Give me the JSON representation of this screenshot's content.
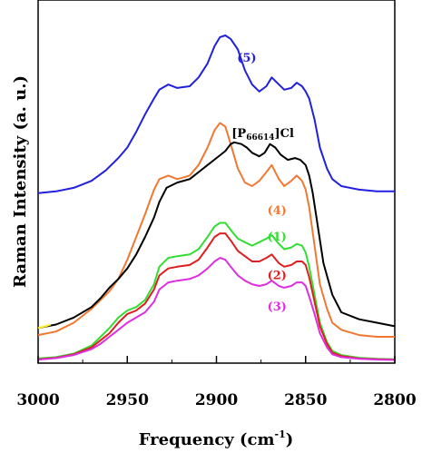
{
  "chart_data": {
    "type": "line",
    "xlabel": "Frequency (cm",
    "xlabel_sup": "-1",
    "xlabel_close": ")",
    "ylabel": "Raman Intensity (a. u.)",
    "xlim": [
      3000,
      2800
    ],
    "ylim": [
      0,
      100
    ],
    "x_ticks": [
      3000,
      2950,
      2900,
      2850,
      2800
    ],
    "x_tick_labels": [
      "3000",
      "2950",
      "2900",
      "2850",
      "2800"
    ],
    "yticks_shown": false,
    "series": [
      {
        "name": "(5)",
        "color": "#2020dd",
        "x": [
          3000,
          2990,
          2980,
          2970,
          2962,
          2955,
          2950,
          2945,
          2940,
          2935,
          2932,
          2927,
          2922,
          2915,
          2910,
          2905,
          2901,
          2898,
          2895,
          2892,
          2888,
          2884,
          2880,
          2876,
          2872,
          2869,
          2865,
          2862,
          2858,
          2855,
          2852,
          2850,
          2848,
          2845,
          2842,
          2838,
          2835,
          2830,
          2820,
          2810,
          2800
        ],
        "y": [
          48,
          48.5,
          49.5,
          51.5,
          54.5,
          58,
          61,
          65.5,
          70.5,
          75,
          77.5,
          79,
          78,
          78.5,
          81,
          85,
          90,
          92.5,
          93,
          92,
          89,
          83,
          79,
          77,
          78.5,
          81,
          79,
          77.5,
          78,
          79.5,
          78.5,
          77,
          75,
          69,
          61,
          55,
          52,
          50,
          49,
          48.5,
          48.5
        ]
      },
      {
        "name": "(4)",
        "color": "#f07830",
        "x": [
          3000,
          2990,
          2980,
          2970,
          2960,
          2955,
          2950,
          2945,
          2940,
          2935,
          2932,
          2927,
          2922,
          2915,
          2910,
          2905,
          2901,
          2898,
          2895,
          2892,
          2888,
          2884,
          2880,
          2876,
          2872,
          2869,
          2865,
          2862,
          2858,
          2855,
          2852,
          2850,
          2848,
          2845,
          2842,
          2838,
          2835,
          2830,
          2820,
          2810,
          2800
        ],
        "y": [
          7.5,
          8.5,
          11,
          15,
          20,
          23.5,
          29,
          35.5,
          42,
          49,
          52,
          53,
          52,
          53,
          56,
          61,
          66,
          68,
          67,
          62,
          55,
          51,
          50,
          51.5,
          54,
          56,
          52,
          50,
          51.5,
          53,
          51.5,
          49,
          44,
          33,
          22,
          15,
          11,
          9,
          7.5,
          7,
          7
        ]
      },
      {
        "name": "[P66614]Cl",
        "color": "#000000",
        "x": [
          3000,
          2990,
          2980,
          2970,
          2965,
          2960,
          2955,
          2950,
          2945,
          2940,
          2935,
          2932,
          2928,
          2922,
          2915,
          2910,
          2905,
          2900,
          2895,
          2892,
          2890,
          2886,
          2883,
          2880,
          2876,
          2873,
          2870,
          2867,
          2864,
          2860,
          2856,
          2853,
          2850,
          2848,
          2846,
          2843,
          2840,
          2835,
          2830,
          2820,
          2810,
          2800
        ],
        "y": [
          9.5,
          10.5,
          12.5,
          15.5,
          18,
          21,
          23.5,
          26.5,
          30.5,
          35.5,
          41,
          45.5,
          49.5,
          51,
          52,
          54,
          56,
          58,
          60,
          62,
          62.5,
          62,
          61,
          59.5,
          58.5,
          59.5,
          62,
          61,
          59,
          57.5,
          58,
          57.5,
          56,
          53,
          48,
          38,
          28,
          19,
          14,
          12,
          11,
          10
        ]
      },
      {
        "name": "(1)",
        "color": "#33dd33",
        "x": [
          3000,
          2990,
          2980,
          2970,
          2965,
          2960,
          2955,
          2950,
          2945,
          2940,
          2935,
          2932,
          2927,
          2922,
          2915,
          2910,
          2905,
          2901,
          2898,
          2895,
          2892,
          2888,
          2884,
          2880,
          2876,
          2872,
          2869,
          2865,
          2862,
          2858,
          2855,
          2852,
          2850,
          2848,
          2845,
          2842,
          2838,
          2835,
          2830,
          2820,
          2810,
          2800
        ],
        "y": [
          0.8,
          1.2,
          2.2,
          4.5,
          7,
          9.5,
          12.5,
          14.5,
          15.5,
          17.5,
          22,
          27,
          29.5,
          30,
          30.5,
          32,
          35.5,
          38.5,
          39.5,
          39.5,
          37.5,
          35,
          34,
          33,
          34,
          35,
          36,
          33.5,
          32,
          32.5,
          33.5,
          33,
          31,
          27,
          19,
          11,
          5.5,
          3,
          1.8,
          1,
          0.7,
          0.6
        ]
      },
      {
        "name": "(2)",
        "color": "#dd1f1f",
        "x": [
          3000,
          2990,
          2980,
          2970,
          2965,
          2960,
          2955,
          2950,
          2945,
          2940,
          2935,
          2932,
          2927,
          2922,
          2915,
          2910,
          2905,
          2901,
          2898,
          2895,
          2892,
          2888,
          2884,
          2880,
          2876,
          2872,
          2869,
          2865,
          2862,
          2858,
          2855,
          2852,
          2850,
          2848,
          2845,
          2842,
          2838,
          2835,
          2830,
          2820,
          2810,
          2800
        ],
        "y": [
          0.6,
          1,
          2,
          4,
          6,
          8,
          11,
          13.5,
          14.5,
          16.5,
          20.5,
          24.5,
          26.5,
          27,
          27.5,
          29,
          32.5,
          35.5,
          36.5,
          36.5,
          34.5,
          31.5,
          30,
          28.5,
          28.5,
          29.5,
          30.5,
          28,
          27,
          27.5,
          28.5,
          28.5,
          27.5,
          24,
          17,
          10,
          5,
          2.5,
          1.5,
          0.8,
          0.6,
          0.5
        ]
      },
      {
        "name": "(3)",
        "color": "#dd2fdd",
        "x": [
          3000,
          2990,
          2980,
          2970,
          2965,
          2960,
          2955,
          2950,
          2945,
          2940,
          2935,
          2932,
          2927,
          2922,
          2915,
          2910,
          2905,
          2901,
          2898,
          2895,
          2892,
          2888,
          2884,
          2880,
          2876,
          2872,
          2869,
          2865,
          2862,
          2858,
          2855,
          2852,
          2850,
          2848,
          2845,
          2842,
          2838,
          2835,
          2830,
          2820,
          2810,
          2800
        ],
        "y": [
          0.5,
          0.9,
          1.8,
          3.5,
          5,
          7,
          9,
          11,
          12.5,
          14,
          17,
          20.5,
          22.5,
          23,
          23.5,
          24.5,
          26.5,
          28.5,
          29.5,
          29,
          27,
          24.5,
          23,
          22,
          21.5,
          22,
          23,
          21.5,
          21,
          21.5,
          22.5,
          22.5,
          21.5,
          18.5,
          13.5,
          8,
          4,
          2,
          1.2,
          0.7,
          0.5,
          0.4
        ]
      },
      {
        "name": "",
        "color": "#ffee22",
        "x": [
          3000,
          2996,
          2993
        ],
        "y": [
          9.5,
          10,
          10.5
        ]
      }
    ],
    "labels": [
      {
        "text": "(5)",
        "x": 2883,
        "y": 85.5,
        "color": "#2020dd"
      },
      {
        "text": "[P",
        "sub": "66614",
        "after": "]Cl",
        "x": 2874,
        "y": 64,
        "color": "#000000"
      },
      {
        "text": "(4)",
        "x": 2866,
        "y": 42,
        "color": "#f07830"
      },
      {
        "text": "(1)",
        "x": 2866,
        "y": 34.5,
        "color": "#33dd33"
      },
      {
        "text": "(2)",
        "x": 2866,
        "y": 23.5,
        "color": "#dd1f1f"
      },
      {
        "text": "(3)",
        "x": 2866,
        "y": 14.5,
        "color": "#dd2fdd"
      }
    ]
  }
}
